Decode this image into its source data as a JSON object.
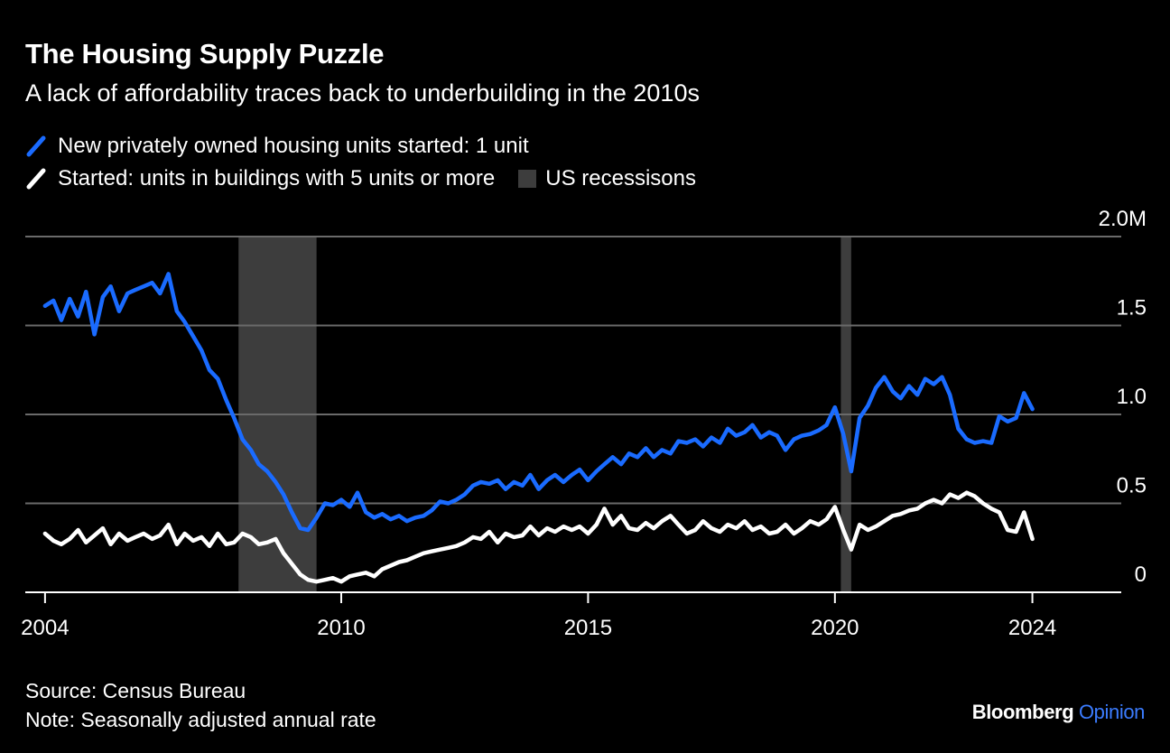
{
  "header": {
    "title": "The Housing Supply Puzzle",
    "subtitle": "A lack of affordability traces back to underbuilding in the 2010s"
  },
  "legend": {
    "series1": "New privately owned housing units started: 1 unit",
    "series2": "Started: units in buildings with 5 units or more",
    "recession": "US recessisons"
  },
  "footer": {
    "source": "Source: Census Bureau",
    "note": "Note: Seasonally adjusted annual rate"
  },
  "brand": {
    "name": "Bloomberg",
    "suffix": "Opinion"
  },
  "colors": {
    "single_unit": "#1a6bff",
    "multi_unit": "#ffffff",
    "recession": "#3d3d3d",
    "grid": "#6a6a6a"
  },
  "chart_data": {
    "type": "line",
    "x_unit": "year",
    "xlim": [
      2003.6,
      2025.8
    ],
    "ylim": [
      0,
      2.0
    ],
    "y_ticks": [
      {
        "value": 0,
        "label": "0"
      },
      {
        "value": 0.5,
        "label": "0.5"
      },
      {
        "value": 1.0,
        "label": "1.0"
      },
      {
        "value": 1.5,
        "label": "1.5"
      },
      {
        "value": 2.0,
        "label": "2.0M"
      }
    ],
    "x_ticks": [
      {
        "value": 2004,
        "label": "2004"
      },
      {
        "value": 2010,
        "label": "2010"
      },
      {
        "value": 2015,
        "label": "2015"
      },
      {
        "value": 2020,
        "label": "2020"
      },
      {
        "value": 2024,
        "label": "2024"
      }
    ],
    "recessions": [
      {
        "start": 2007.92,
        "end": 2009.5
      },
      {
        "start": 2020.12,
        "end": 2020.33
      }
    ],
    "series": [
      {
        "name": "New privately owned housing units started: 1 unit",
        "color": "#1a6bff",
        "points": [
          [
            2004.0,
            1.61
          ],
          [
            2004.17,
            1.64
          ],
          [
            2004.33,
            1.53
          ],
          [
            2004.5,
            1.65
          ],
          [
            2004.67,
            1.55
          ],
          [
            2004.83,
            1.69
          ],
          [
            2005.0,
            1.45
          ],
          [
            2005.17,
            1.66
          ],
          [
            2005.33,
            1.72
          ],
          [
            2005.5,
            1.58
          ],
          [
            2005.67,
            1.68
          ],
          [
            2005.83,
            1.7
          ],
          [
            2006.0,
            1.72
          ],
          [
            2006.17,
            1.74
          ],
          [
            2006.33,
            1.68
          ],
          [
            2006.5,
            1.79
          ],
          [
            2006.67,
            1.58
          ],
          [
            2006.83,
            1.52
          ],
          [
            2007.0,
            1.44
          ],
          [
            2007.17,
            1.36
          ],
          [
            2007.33,
            1.25
          ],
          [
            2007.5,
            1.2
          ],
          [
            2007.67,
            1.08
          ],
          [
            2007.83,
            0.98
          ],
          [
            2008.0,
            0.86
          ],
          [
            2008.17,
            0.8
          ],
          [
            2008.33,
            0.72
          ],
          [
            2008.5,
            0.68
          ],
          [
            2008.67,
            0.62
          ],
          [
            2008.83,
            0.55
          ],
          [
            2009.0,
            0.45
          ],
          [
            2009.17,
            0.36
          ],
          [
            2009.33,
            0.35
          ],
          [
            2009.5,
            0.42
          ],
          [
            2009.67,
            0.5
          ],
          [
            2009.83,
            0.49
          ],
          [
            2010.0,
            0.52
          ],
          [
            2010.17,
            0.48
          ],
          [
            2010.33,
            0.56
          ],
          [
            2010.5,
            0.45
          ],
          [
            2010.67,
            0.42
          ],
          [
            2010.83,
            0.44
          ],
          [
            2011.0,
            0.41
          ],
          [
            2011.17,
            0.43
          ],
          [
            2011.33,
            0.4
          ],
          [
            2011.5,
            0.42
          ],
          [
            2011.67,
            0.43
          ],
          [
            2011.83,
            0.46
          ],
          [
            2012.0,
            0.51
          ],
          [
            2012.17,
            0.5
          ],
          [
            2012.33,
            0.52
          ],
          [
            2012.5,
            0.55
          ],
          [
            2012.67,
            0.6
          ],
          [
            2012.83,
            0.62
          ],
          [
            2013.0,
            0.61
          ],
          [
            2013.17,
            0.63
          ],
          [
            2013.33,
            0.58
          ],
          [
            2013.5,
            0.62
          ],
          [
            2013.67,
            0.6
          ],
          [
            2013.83,
            0.66
          ],
          [
            2014.0,
            0.58
          ],
          [
            2014.17,
            0.63
          ],
          [
            2014.33,
            0.66
          ],
          [
            2014.5,
            0.62
          ],
          [
            2014.67,
            0.66
          ],
          [
            2014.83,
            0.69
          ],
          [
            2015.0,
            0.63
          ],
          [
            2015.17,
            0.68
          ],
          [
            2015.33,
            0.72
          ],
          [
            2015.5,
            0.76
          ],
          [
            2015.67,
            0.72
          ],
          [
            2015.83,
            0.78
          ],
          [
            2016.0,
            0.76
          ],
          [
            2016.17,
            0.81
          ],
          [
            2016.33,
            0.76
          ],
          [
            2016.5,
            0.8
          ],
          [
            2016.67,
            0.78
          ],
          [
            2016.83,
            0.85
          ],
          [
            2017.0,
            0.84
          ],
          [
            2017.17,
            0.86
          ],
          [
            2017.33,
            0.82
          ],
          [
            2017.5,
            0.87
          ],
          [
            2017.67,
            0.84
          ],
          [
            2017.83,
            0.92
          ],
          [
            2018.0,
            0.88
          ],
          [
            2018.17,
            0.9
          ],
          [
            2018.33,
            0.94
          ],
          [
            2018.5,
            0.87
          ],
          [
            2018.67,
            0.9
          ],
          [
            2018.83,
            0.88
          ],
          [
            2019.0,
            0.8
          ],
          [
            2019.17,
            0.86
          ],
          [
            2019.33,
            0.88
          ],
          [
            2019.5,
            0.89
          ],
          [
            2019.67,
            0.91
          ],
          [
            2019.83,
            0.94
          ],
          [
            2020.0,
            1.04
          ],
          [
            2020.17,
            0.89
          ],
          [
            2020.33,
            0.68
          ],
          [
            2020.5,
            0.98
          ],
          [
            2020.67,
            1.05
          ],
          [
            2020.83,
            1.15
          ],
          [
            2021.0,
            1.21
          ],
          [
            2021.17,
            1.13
          ],
          [
            2021.33,
            1.09
          ],
          [
            2021.5,
            1.16
          ],
          [
            2021.67,
            1.11
          ],
          [
            2021.83,
            1.2
          ],
          [
            2022.0,
            1.17
          ],
          [
            2022.17,
            1.21
          ],
          [
            2022.33,
            1.11
          ],
          [
            2022.5,
            0.92
          ],
          [
            2022.67,
            0.86
          ],
          [
            2022.83,
            0.84
          ],
          [
            2023.0,
            0.85
          ],
          [
            2023.17,
            0.84
          ],
          [
            2023.33,
            0.99
          ],
          [
            2023.5,
            0.96
          ],
          [
            2023.67,
            0.98
          ],
          [
            2023.83,
            1.12
          ],
          [
            2024.0,
            1.03
          ]
        ]
      },
      {
        "name": "Started: units in buildings with 5 units or more",
        "color": "#ffffff",
        "points": [
          [
            2004.0,
            0.33
          ],
          [
            2004.17,
            0.29
          ],
          [
            2004.33,
            0.27
          ],
          [
            2004.5,
            0.3
          ],
          [
            2004.67,
            0.35
          ],
          [
            2004.83,
            0.28
          ],
          [
            2005.0,
            0.32
          ],
          [
            2005.17,
            0.36
          ],
          [
            2005.33,
            0.27
          ],
          [
            2005.5,
            0.33
          ],
          [
            2005.67,
            0.29
          ],
          [
            2005.83,
            0.31
          ],
          [
            2006.0,
            0.33
          ],
          [
            2006.17,
            0.3
          ],
          [
            2006.33,
            0.32
          ],
          [
            2006.5,
            0.38
          ],
          [
            2006.67,
            0.27
          ],
          [
            2006.83,
            0.33
          ],
          [
            2007.0,
            0.29
          ],
          [
            2007.17,
            0.31
          ],
          [
            2007.33,
            0.26
          ],
          [
            2007.5,
            0.33
          ],
          [
            2007.67,
            0.27
          ],
          [
            2007.83,
            0.28
          ],
          [
            2008.0,
            0.33
          ],
          [
            2008.17,
            0.31
          ],
          [
            2008.33,
            0.27
          ],
          [
            2008.5,
            0.28
          ],
          [
            2008.67,
            0.3
          ],
          [
            2008.83,
            0.22
          ],
          [
            2009.0,
            0.16
          ],
          [
            2009.17,
            0.1
          ],
          [
            2009.33,
            0.07
          ],
          [
            2009.5,
            0.06
          ],
          [
            2009.67,
            0.07
          ],
          [
            2009.83,
            0.08
          ],
          [
            2010.0,
            0.06
          ],
          [
            2010.17,
            0.09
          ],
          [
            2010.33,
            0.1
          ],
          [
            2010.5,
            0.11
          ],
          [
            2010.67,
            0.09
          ],
          [
            2010.83,
            0.13
          ],
          [
            2011.0,
            0.15
          ],
          [
            2011.17,
            0.17
          ],
          [
            2011.33,
            0.18
          ],
          [
            2011.5,
            0.2
          ],
          [
            2011.67,
            0.22
          ],
          [
            2011.83,
            0.23
          ],
          [
            2012.0,
            0.24
          ],
          [
            2012.17,
            0.25
          ],
          [
            2012.33,
            0.26
          ],
          [
            2012.5,
            0.28
          ],
          [
            2012.67,
            0.31
          ],
          [
            2012.83,
            0.3
          ],
          [
            2013.0,
            0.34
          ],
          [
            2013.17,
            0.28
          ],
          [
            2013.33,
            0.33
          ],
          [
            2013.5,
            0.31
          ],
          [
            2013.67,
            0.32
          ],
          [
            2013.83,
            0.37
          ],
          [
            2014.0,
            0.32
          ],
          [
            2014.17,
            0.36
          ],
          [
            2014.33,
            0.34
          ],
          [
            2014.5,
            0.37
          ],
          [
            2014.67,
            0.35
          ],
          [
            2014.83,
            0.37
          ],
          [
            2015.0,
            0.33
          ],
          [
            2015.17,
            0.38
          ],
          [
            2015.33,
            0.47
          ],
          [
            2015.5,
            0.38
          ],
          [
            2015.67,
            0.43
          ],
          [
            2015.83,
            0.36
          ],
          [
            2016.0,
            0.35
          ],
          [
            2016.17,
            0.39
          ],
          [
            2016.33,
            0.36
          ],
          [
            2016.5,
            0.4
          ],
          [
            2016.67,
            0.43
          ],
          [
            2016.83,
            0.38
          ],
          [
            2017.0,
            0.33
          ],
          [
            2017.17,
            0.35
          ],
          [
            2017.33,
            0.4
          ],
          [
            2017.5,
            0.36
          ],
          [
            2017.67,
            0.34
          ],
          [
            2017.83,
            0.38
          ],
          [
            2018.0,
            0.36
          ],
          [
            2018.17,
            0.4
          ],
          [
            2018.33,
            0.35
          ],
          [
            2018.5,
            0.37
          ],
          [
            2018.67,
            0.33
          ],
          [
            2018.83,
            0.34
          ],
          [
            2019.0,
            0.38
          ],
          [
            2019.17,
            0.33
          ],
          [
            2019.33,
            0.36
          ],
          [
            2019.5,
            0.4
          ],
          [
            2019.67,
            0.38
          ],
          [
            2019.83,
            0.41
          ],
          [
            2020.0,
            0.48
          ],
          [
            2020.17,
            0.35
          ],
          [
            2020.33,
            0.24
          ],
          [
            2020.5,
            0.38
          ],
          [
            2020.67,
            0.35
          ],
          [
            2020.83,
            0.37
          ],
          [
            2021.0,
            0.4
          ],
          [
            2021.17,
            0.43
          ],
          [
            2021.33,
            0.44
          ],
          [
            2021.5,
            0.46
          ],
          [
            2021.67,
            0.47
          ],
          [
            2021.83,
            0.5
          ],
          [
            2022.0,
            0.52
          ],
          [
            2022.17,
            0.5
          ],
          [
            2022.33,
            0.55
          ],
          [
            2022.5,
            0.53
          ],
          [
            2022.67,
            0.56
          ],
          [
            2022.83,
            0.54
          ],
          [
            2023.0,
            0.5
          ],
          [
            2023.17,
            0.47
          ],
          [
            2023.33,
            0.45
          ],
          [
            2023.5,
            0.35
          ],
          [
            2023.67,
            0.34
          ],
          [
            2023.83,
            0.45
          ],
          [
            2024.0,
            0.3
          ]
        ]
      }
    ]
  }
}
